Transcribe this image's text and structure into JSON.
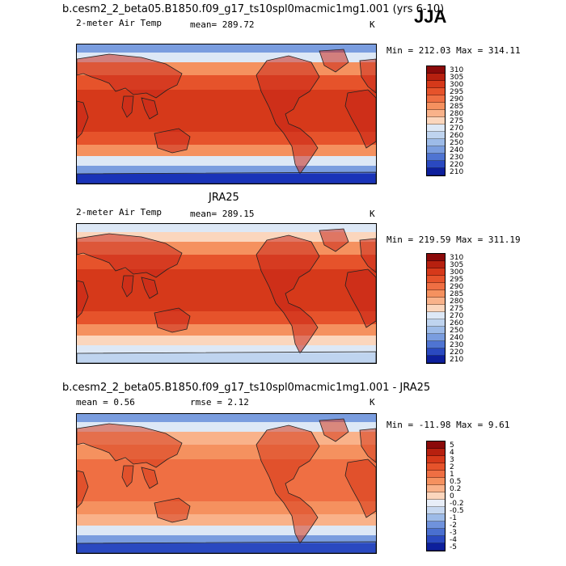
{
  "season": "JJA",
  "panels": [
    {
      "title": "b.cesm2_2_beta05.B1850.f09_g17_ts10spl0macmic1mg1.001 (yrs 6-10)",
      "variable": "2-meter Air Temp",
      "stat1": "mean= 289.72",
      "stat2": "",
      "units": "K",
      "minmax": "Min = 212.03 Max = 314.11",
      "colorbar_labels": [
        "310",
        "305",
        "300",
        "295",
        "290",
        "285",
        "280",
        "275",
        "270",
        "260",
        "250",
        "240",
        "230",
        "220",
        "210"
      ],
      "colorbar_colors": [
        "#8b0a0a",
        "#b7200f",
        "#d6391a",
        "#e6532b",
        "#ef6f43",
        "#f5915f",
        "#f9b28a",
        "#fbd6bd",
        "#dde8f6",
        "#bfd4ef",
        "#9dbbe8",
        "#7a9ddf",
        "#4f74d2",
        "#2a49c0",
        "#0d1f9c"
      ],
      "map_colors": {
        "polar": "#1a33b8",
        "subpolar": "#7a9ddf",
        "cool": "#dde8f6",
        "mid": "#f5915f",
        "warm": "#e6532b",
        "hot": "#d6391a",
        "land": "#c8281a"
      }
    },
    {
      "title": "JRA25",
      "variable": "2-meter Air Temp",
      "stat1": "mean= 289.15",
      "stat2": "",
      "units": "K",
      "minmax": "Min = 219.59 Max = 311.19",
      "colorbar_labels": [
        "310",
        "305",
        "300",
        "295",
        "290",
        "285",
        "280",
        "275",
        "270",
        "260",
        "250",
        "240",
        "230",
        "220",
        "210"
      ],
      "colorbar_colors": [
        "#8b0a0a",
        "#b7200f",
        "#d6391a",
        "#e6532b",
        "#ef6f43",
        "#f5915f",
        "#f9b28a",
        "#fbd6bd",
        "#dde8f6",
        "#bfd4ef",
        "#9dbbe8",
        "#7a9ddf",
        "#4f74d2",
        "#2a49c0",
        "#0d1f9c"
      ],
      "map_colors": {
        "polar": "#bfd4ef",
        "subpolar": "#dde8f6",
        "cool": "#fbd6bd",
        "mid": "#f5915f",
        "warm": "#e6532b",
        "hot": "#d6391a",
        "land": "#c8281a"
      }
    },
    {
      "title": "b.cesm2_2_beta05.B1850.f09_g17_ts10spl0macmic1mg1.001 - JRA25",
      "variable": "",
      "stat1": "mean =   0.56",
      "stat2": "rmse =   2.12",
      "units": "K",
      "minmax": "Min = -11.98 Max =   9.61",
      "colorbar_labels": [
        "5",
        "4",
        "3",
        "2",
        "1",
        "0.5",
        "0.2",
        "0",
        "-0.2",
        "-0.5",
        "-1",
        "-2",
        "-3",
        "-4",
        "-5"
      ],
      "colorbar_colors": [
        "#8b0a0a",
        "#b7200f",
        "#d6391a",
        "#e6532b",
        "#ef6f43",
        "#f5915f",
        "#f9b28a",
        "#fbd6bd",
        "#e8eef8",
        "#c7d8f0",
        "#9dbbe8",
        "#6f92dc",
        "#4a6fd0",
        "#2a49c0",
        "#0d1f9c"
      ],
      "map_colors": {
        "polar": "#2a49c0",
        "subpolar": "#7a9ddf",
        "cool": "#dde8f6",
        "mid": "#f9b28a",
        "warm": "#f5915f",
        "hot": "#ef6f43",
        "land": "#d6391a"
      }
    }
  ]
}
